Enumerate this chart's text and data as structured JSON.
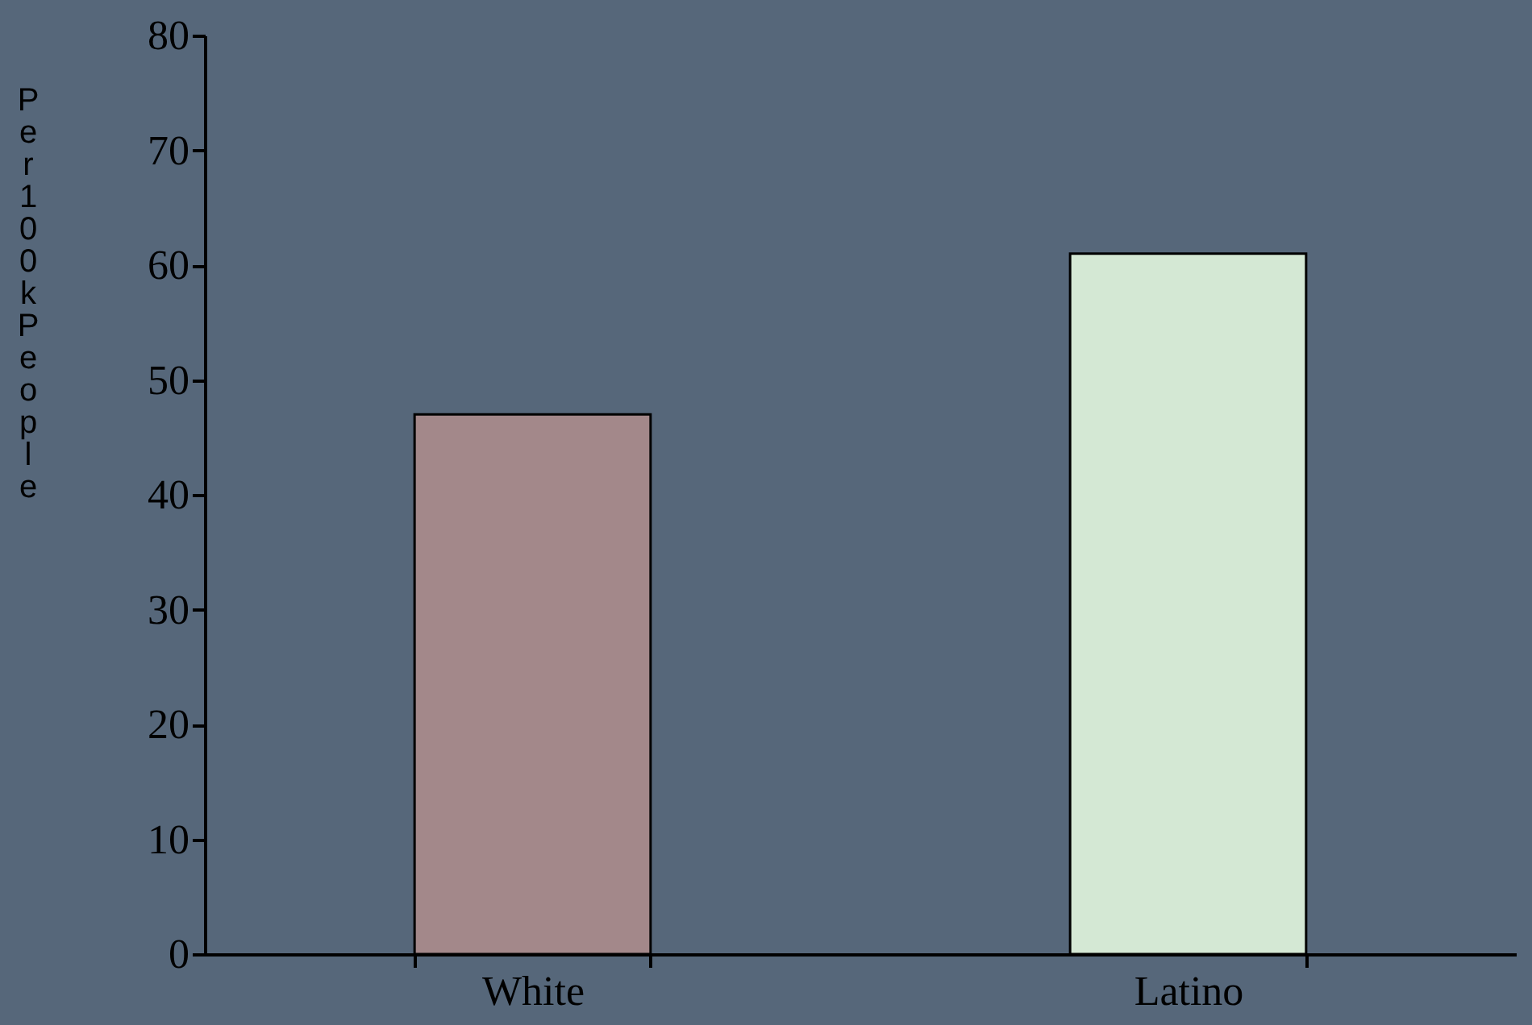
{
  "chart_data": {
    "type": "bar",
    "ylabel": "Per 100k People",
    "categories": [
      "White",
      "Latino"
    ],
    "values": [
      47,
      61
    ],
    "colors": [
      "#a3888a",
      "#d4e8d4"
    ],
    "ylim": [
      0,
      80
    ],
    "yticks": [
      0,
      10,
      20,
      30,
      40,
      50,
      60,
      70,
      80
    ],
    "grid": false
  }
}
